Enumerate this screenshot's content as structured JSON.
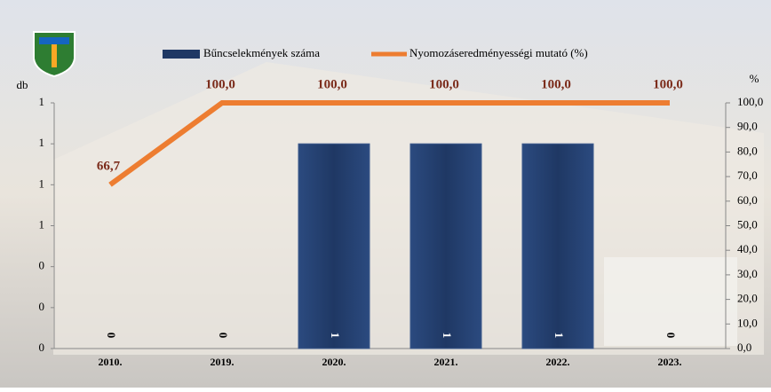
{
  "chart_data": {
    "type": "bar",
    "categories": [
      "2010.",
      "2019.",
      "2020.",
      "2021.",
      "2022.",
      "2023."
    ],
    "series": [
      {
        "name": "Bűncselekmények száma",
        "type": "bar",
        "color": "#1f3864",
        "values": [
          0,
          0,
          1,
          1,
          1,
          0
        ]
      },
      {
        "name": "Nyomozáseredményességi mutató (%)",
        "type": "line",
        "axis": "y2",
        "color": "#ed7d31",
        "values": [
          66.7,
          100,
          100,
          100,
          100,
          100
        ],
        "value_labels": [
          "66,7",
          "100,0",
          "100,0",
          "100,0",
          "100,0",
          "100,0"
        ]
      }
    ],
    "ylabel": "db",
    "y2label": "%",
    "ylim": [
      0,
      1.2
    ],
    "yticks": [
      0,
      {
        "value": 0.2,
        "label": "0"
      },
      {
        "value": 0.4,
        "label": "0"
      },
      {
        "value": 0.6,
        "label": "1"
      },
      {
        "value": 0.8,
        "label": "1"
      },
      {
        "value": 1.0,
        "label": "1"
      },
      {
        "value": 1.2,
        "label": "1"
      }
    ],
    "y2lim": [
      0,
      100
    ],
    "y2ticks": [
      {
        "value": 0,
        "label": "0,0"
      },
      {
        "value": 10,
        "label": "10,0"
      },
      {
        "value": 20,
        "label": "20,0"
      },
      {
        "value": 30,
        "label": "30,0"
      },
      {
        "value": 40,
        "label": "40,0"
      },
      {
        "value": 50,
        "label": "50,0"
      },
      {
        "value": 60,
        "label": "60,0"
      },
      {
        "value": 70,
        "label": "70,0"
      },
      {
        "value": 80,
        "label": "80,0"
      },
      {
        "value": 90,
        "label": "90,0"
      },
      {
        "value": 100,
        "label": "100,0"
      }
    ]
  }
}
